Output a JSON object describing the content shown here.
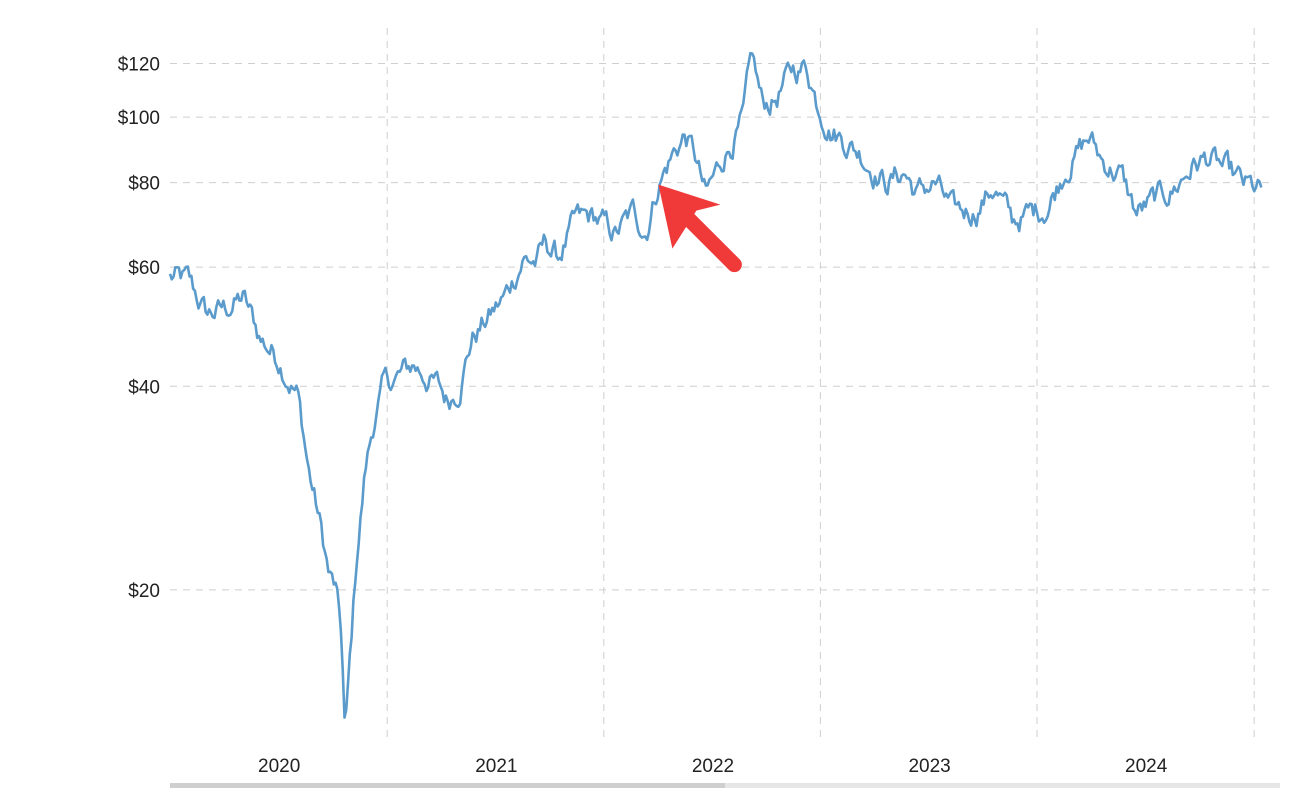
{
  "chart_data": {
    "type": "line",
    "title": "",
    "xlabel": "",
    "ylabel": "",
    "scale": "log",
    "grid": true,
    "legend": "none",
    "line_color": "#5b9bcc",
    "annotation": {
      "type": "arrow",
      "color": "#f03a3a",
      "points_to": "2021-10-01"
    },
    "x_ticks": [
      "2020",
      "2021",
      "2022",
      "2023",
      "2024"
    ],
    "y_ticks": [
      {
        "value": 20,
        "label": "$20"
      },
      {
        "value": 40,
        "label": "$40"
      },
      {
        "value": 60,
        "label": "$60"
      },
      {
        "value": 80,
        "label": "$80"
      },
      {
        "value": 100,
        "label": "$100"
      },
      {
        "value": 120,
        "label": "$120"
      }
    ],
    "ylim": [
      12,
      130
    ],
    "xlim": [
      "2019-07-01",
      "2024-07-31"
    ],
    "series": [
      {
        "x": [
          "2019-07-01",
          "2019-08-01",
          "2019-09-01",
          "2019-10-01",
          "2019-11-01",
          "2019-12-01",
          "2020-01-01",
          "2020-02-01",
          "2020-02-20",
          "2020-03-10",
          "2020-03-25",
          "2020-04-05",
          "2020-04-15",
          "2020-04-21",
          "2020-04-28",
          "2020-05-10",
          "2020-05-25",
          "2020-06-10",
          "2020-06-25",
          "2020-07-15",
          "2020-08-15",
          "2020-09-10",
          "2020-09-25",
          "2020-10-10",
          "2020-10-30",
          "2020-11-20",
          "2020-12-15",
          "2021-01-15",
          "2021-02-15",
          "2021-03-10",
          "2021-03-25",
          "2021-04-15",
          "2021-05-15",
          "2021-06-15",
          "2021-07-20",
          "2021-08-20",
          "2021-09-10",
          "2021-10-01",
          "2021-10-25",
          "2021-11-15",
          "2021-12-01",
          "2021-12-20",
          "2022-01-20",
          "2022-02-20",
          "2022-03-08",
          "2022-03-25",
          "2022-04-15",
          "2022-05-15",
          "2022-06-08",
          "2022-06-25",
          "2022-07-20",
          "2022-08-15",
          "2022-09-10",
          "2022-09-28",
          "2022-10-20",
          "2022-11-20",
          "2022-12-10",
          "2023-01-10",
          "2023-02-10",
          "2023-03-20",
          "2023-04-20",
          "2023-05-20",
          "2023-06-20",
          "2023-07-20",
          "2023-08-20",
          "2023-09-27",
          "2023-10-20",
          "2023-11-20",
          "2023-12-15",
          "2024-01-15",
          "2024-02-15",
          "2024-03-20",
          "2024-04-15",
          "2024-05-15",
          "2024-06-15",
          "2024-07-15"
        ],
        "y": [
          58,
          57,
          51,
          52,
          54,
          47,
          44,
          39,
          30,
          25,
          21,
          20,
          17,
          12,
          15,
          22,
          30,
          36,
          40,
          41,
          43,
          41,
          40,
          38,
          40,
          47,
          50,
          54,
          62,
          61,
          65,
          62,
          70,
          71,
          67,
          72,
          68,
          80,
          88,
          94,
          88,
          76,
          88,
          98,
          122,
          104,
          106,
          117,
          119,
          106,
          96,
          92,
          88,
          84,
          80,
          83,
          77,
          80,
          72,
          73,
          79,
          70,
          72,
          74,
          85,
          93,
          86,
          82,
          72,
          75,
          78,
          85,
          87,
          83,
          79,
          77
        ]
      }
    ]
  }
}
